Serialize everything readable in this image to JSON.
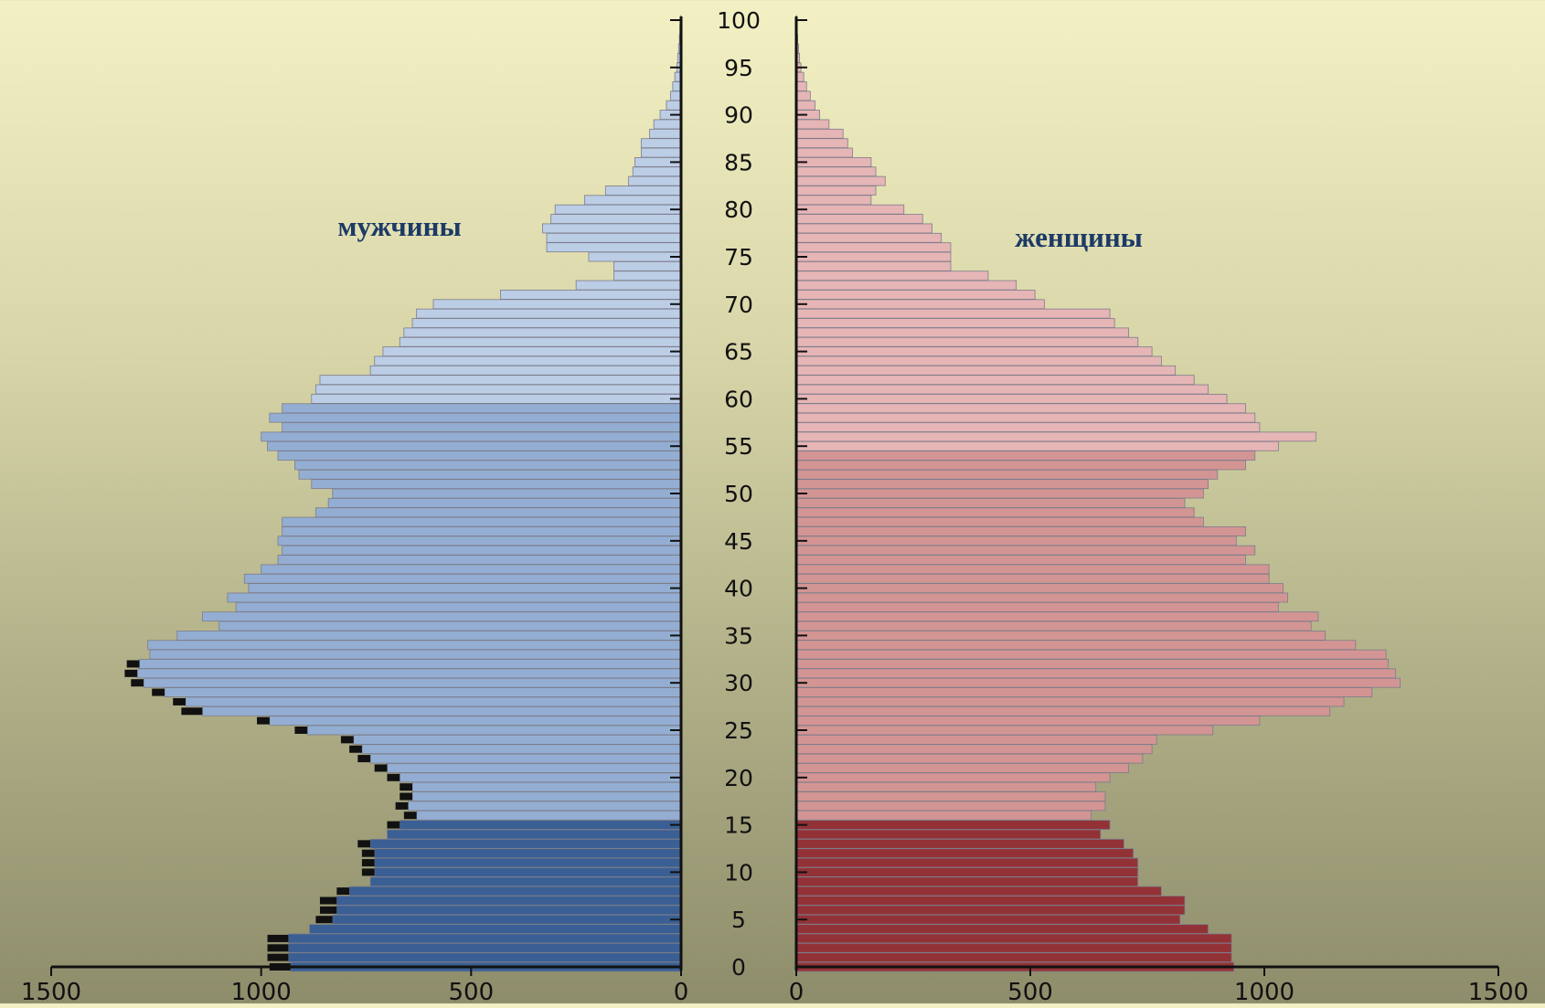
{
  "chart_data": {
    "type": "bar",
    "orientation": "horizontal",
    "layout": "population-pyramid",
    "ages": [
      0,
      1,
      2,
      3,
      4,
      5,
      6,
      7,
      8,
      9,
      10,
      11,
      12,
      13,
      14,
      15,
      16,
      17,
      18,
      19,
      20,
      21,
      22,
      23,
      24,
      25,
      26,
      27,
      28,
      29,
      30,
      31,
      32,
      33,
      34,
      35,
      36,
      37,
      38,
      39,
      40,
      41,
      42,
      43,
      44,
      45,
      46,
      47,
      48,
      49,
      50,
      51,
      52,
      53,
      54,
      55,
      56,
      57,
      58,
      59,
      60,
      61,
      62,
      63,
      64,
      65,
      66,
      67,
      68,
      69,
      70,
      71,
      72,
      73,
      74,
      75,
      76,
      77,
      78,
      79,
      80,
      81,
      82,
      83,
      84,
      85,
      86,
      87,
      88,
      89,
      90,
      91,
      92,
      93,
      94,
      95,
      96,
      97,
      98,
      99,
      100
    ],
    "y_ticks": [
      "0",
      "5",
      "10",
      "15",
      "20",
      "25",
      "30",
      "35",
      "40",
      "45",
      "50",
      "55",
      "60",
      "65",
      "70",
      "75",
      "80",
      "85",
      "90",
      "95",
      "100"
    ],
    "x_ticks_left": [
      "1500",
      "1000",
      "500",
      "0"
    ],
    "x_ticks_right": [
      "0",
      "500",
      "1000",
      "1500"
    ],
    "xlim": [
      0,
      1500
    ],
    "series": [
      {
        "name": "мужчины",
        "side": "left",
        "values": [
          930,
          935,
          935,
          935,
          885,
          830,
          820,
          820,
          790,
          740,
          730,
          730,
          730,
          740,
          700,
          670,
          630,
          650,
          640,
          640,
          670,
          700,
          740,
          760,
          780,
          890,
          980,
          1140,
          1180,
          1230,
          1280,
          1295,
          1290,
          1265,
          1270,
          1200,
          1100,
          1140,
          1060,
          1080,
          1030,
          1040,
          1000,
          960,
          950,
          960,
          950,
          950,
          870,
          840,
          830,
          880,
          910,
          920,
          960,
          985,
          1000,
          950,
          980,
          950,
          880,
          870,
          860,
          740,
          730,
          710,
          670,
          660,
          640,
          630,
          590,
          430,
          250,
          160,
          160,
          220,
          320,
          320,
          330,
          310,
          300,
          230,
          180,
          125,
          115,
          110,
          95,
          95,
          75,
          65,
          50,
          35,
          25,
          20,
          15,
          10,
          8,
          6,
          4,
          3,
          1
        ],
        "deficit": [
          50,
          50,
          50,
          50,
          0,
          40,
          40,
          40,
          30,
          0,
          30,
          30,
          30,
          30,
          0,
          30,
          30,
          30,
          30,
          30,
          30,
          30,
          30,
          30,
          30,
          30,
          30,
          50,
          30,
          30,
          30,
          30,
          30,
          0,
          0,
          0,
          0,
          0,
          0,
          0,
          0,
          0,
          0,
          0,
          0,
          0,
          0,
          0,
          0,
          0,
          0,
          0,
          0,
          0,
          0,
          0,
          0,
          0,
          0,
          0,
          0,
          0,
          0,
          0,
          0,
          0,
          0,
          0,
          0,
          0,
          0,
          0,
          0,
          0,
          0,
          0,
          0,
          0,
          0,
          0,
          0,
          0,
          0,
          0,
          0,
          0,
          0,
          0,
          0,
          0,
          0,
          0,
          0,
          0,
          0,
          0,
          0,
          0,
          0,
          0,
          0
        ]
      },
      {
        "name": "женщины",
        "side": "right",
        "values": [
          935,
          930,
          930,
          930,
          880,
          820,
          830,
          830,
          780,
          730,
          730,
          730,
          720,
          700,
          650,
          670,
          630,
          660,
          660,
          640,
          670,
          710,
          740,
          760,
          770,
          890,
          990,
          1140,
          1170,
          1230,
          1290,
          1280,
          1265,
          1260,
          1195,
          1130,
          1100,
          1115,
          1030,
          1050,
          1040,
          1010,
          1010,
          960,
          980,
          940,
          960,
          870,
          850,
          830,
          870,
          880,
          900,
          960,
          980,
          1030,
          1110,
          990,
          980,
          960,
          920,
          880,
          850,
          810,
          780,
          760,
          730,
          710,
          680,
          670,
          530,
          510,
          470,
          410,
          330,
          330,
          330,
          310,
          290,
          270,
          230,
          160,
          170,
          190,
          170,
          160,
          120,
          110,
          100,
          70,
          50,
          40,
          30,
          22,
          16,
          10,
          7,
          5,
          3,
          2,
          1
        ],
        "deficit": [
          0,
          0,
          0,
          0,
          0,
          0,
          0,
          0,
          0,
          0,
          0,
          0,
          0,
          0,
          0,
          0,
          0,
          0,
          0,
          0,
          0,
          0,
          0,
          0,
          0,
          0,
          0,
          0,
          0,
          0,
          0,
          0,
          0,
          0,
          0,
          0,
          0,
          0,
          0,
          0,
          0,
          0,
          0,
          0,
          0,
          0,
          0,
          0,
          0,
          0,
          0,
          0,
          0,
          0,
          0,
          0,
          0,
          0,
          0,
          0,
          0,
          0,
          0,
          0,
          0,
          0,
          0,
          0,
          0,
          0,
          0,
          0,
          0,
          0,
          0,
          0,
          0,
          0,
          0,
          0,
          0,
          0,
          0,
          0,
          0,
          0,
          0,
          0,
          0,
          0,
          0,
          0,
          0,
          0,
          0,
          0,
          0,
          0,
          0,
          0,
          0
        ]
      }
    ],
    "colors": {
      "male_child": "#3a5f94",
      "male_working": "#93aed2",
      "male_elderly": "#bccde6",
      "female_child": "#933236",
      "female_working": "#d39593",
      "female_elderly": "#e6b5b6",
      "deficit": "#111111",
      "bar_outline": "#7d7d8a"
    },
    "grid": false,
    "legend": "none"
  }
}
